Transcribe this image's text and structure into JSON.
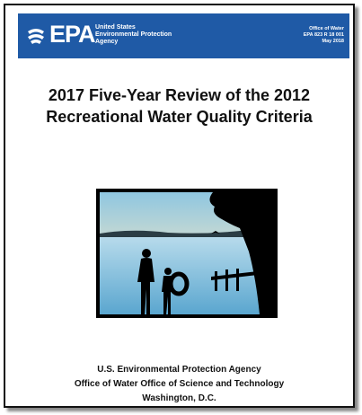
{
  "header": {
    "logo": "EPA",
    "agency": [
      "United States",
      "Environmental Protection",
      "Agency"
    ],
    "office": "Office of Water",
    "number": "EPA 823 R 18 001",
    "date": "May 2018"
  },
  "title": [
    "2017 Five-Year Review of the 2012",
    "Recreational Water Quality Criteria"
  ],
  "footer": [
    "U.S. Environmental Protection Agency",
    "Office of Water Office of Science and Technology",
    "Washington, D.C."
  ]
}
